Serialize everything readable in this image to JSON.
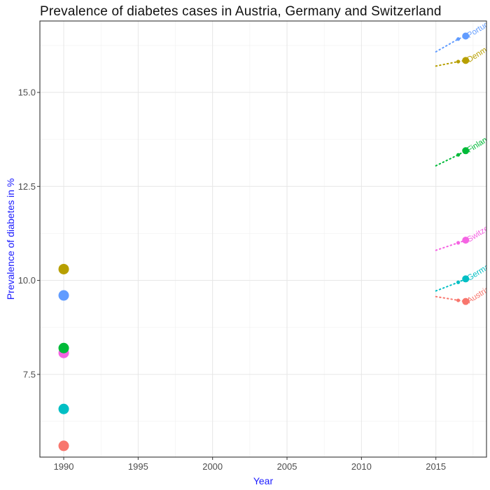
{
  "chart_data": {
    "type": "scatter",
    "title": "Prevalence of diabetes cases in Austria, Germany and Switzerland",
    "xlabel": "Year",
    "ylabel": "Prevalence of diabetes in %",
    "xlim": [
      1988.4,
      2018.4
    ],
    "ylim": [
      5.3,
      16.9
    ],
    "xticks": [
      1990,
      1995,
      2000,
      2005,
      2010,
      2015
    ],
    "yticks": [
      7.5,
      10.0,
      12.5,
      15.0
    ],
    "ytick_labels": [
      "7.5",
      "10.0",
      "12.5",
      "15.0"
    ],
    "grid": true,
    "legend": "none",
    "series": [
      {
        "name": "Austria",
        "color": "#F8766D",
        "start": {
          "x": 1990,
          "y": 5.6
        },
        "trend": [
          {
            "x": 2015.0,
            "y": 9.57
          },
          {
            "x": 2016.5,
            "y": 9.47
          },
          {
            "x": 2017.0,
            "y": 9.44
          }
        ]
      },
      {
        "name": "Germany",
        "color": "#00BFC4",
        "start": {
          "x": 1990,
          "y": 6.58
        },
        "trend": [
          {
            "x": 2015.0,
            "y": 9.72
          },
          {
            "x": 2016.5,
            "y": 9.95
          },
          {
            "x": 2017.0,
            "y": 10.04
          }
        ]
      },
      {
        "name": "Switzerland",
        "color": "#F564E3",
        "start": {
          "x": 1990,
          "y": 8.07
        },
        "trend": [
          {
            "x": 2015.0,
            "y": 10.8
          },
          {
            "x": 2016.5,
            "y": 11.0
          },
          {
            "x": 2017.0,
            "y": 11.07
          }
        ]
      },
      {
        "name": "Finland",
        "color": "#00BA38",
        "start": {
          "x": 1990,
          "y": 8.2
        },
        "trend": [
          {
            "x": 2015.0,
            "y": 13.05
          },
          {
            "x": 2016.5,
            "y": 13.34
          },
          {
            "x": 2017.0,
            "y": 13.45
          }
        ]
      },
      {
        "name": "Portugal",
        "color": "#619CFF",
        "start": {
          "x": 1990,
          "y": 9.6
        },
        "trend": [
          {
            "x": 2015.0,
            "y": 16.08
          },
          {
            "x": 2016.5,
            "y": 16.42
          },
          {
            "x": 2017.0,
            "y": 16.5
          }
        ]
      },
      {
        "name": "Denmark",
        "color": "#B79F00",
        "start": {
          "x": 1990,
          "y": 10.3
        },
        "trend": [
          {
            "x": 2015.0,
            "y": 15.7
          },
          {
            "x": 2016.5,
            "y": 15.82
          },
          {
            "x": 2017.0,
            "y": 15.85
          }
        ]
      }
    ],
    "end_labels": [
      "Austria",
      "Germany",
      "Switzerland",
      "Finland",
      "Portugal",
      "Denmark"
    ]
  }
}
